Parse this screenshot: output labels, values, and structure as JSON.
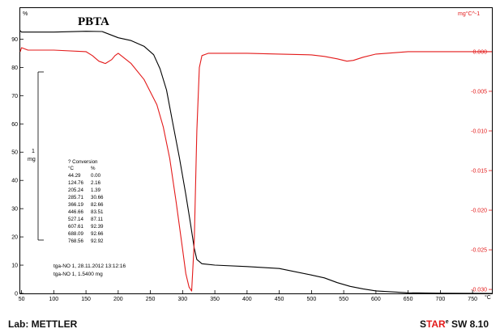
{
  "chart_data": {
    "type": "line",
    "title": "PBTA",
    "xlabel": "°C",
    "ylabel_left": "%",
    "ylabel_right": "mg°C^-1",
    "x_ticks": [
      50,
      100,
      150,
      200,
      250,
      300,
      350,
      400,
      450,
      500,
      550,
      600,
      650,
      700,
      750
    ],
    "xlim": [
      48,
      780
    ],
    "y_left_ticks": [
      0,
      10,
      20,
      30,
      40,
      50,
      60,
      70,
      80,
      90
    ],
    "y_left_lim": [
      0,
      101
    ],
    "y_right_ticks": [
      0.0,
      -0.005,
      -0.01,
      -0.015,
      -0.02,
      -0.025,
      -0.03
    ],
    "y_right_tick_labels": [
      "0.000",
      "-0.005",
      "-0.010",
      "-0.015",
      "-0.020",
      "-0.025",
      "-0.030"
    ],
    "y_right_lim": [
      -0.0305,
      0.0055
    ],
    "grid": false,
    "series": [
      {
        "axis": "left",
        "color": "#000000",
        "x": [
          48,
          50,
          70,
          100,
          150,
          175,
          200,
          220,
          240,
          255,
          265,
          275,
          285,
          295,
          305,
          312,
          318,
          322,
          330,
          350,
          400,
          450,
          500,
          520,
          540,
          560,
          580,
          600,
          630,
          650,
          700,
          780
        ],
        "y": [
          93,
          92.5,
          92.5,
          92.5,
          92.8,
          92.7,
          90.5,
          89.5,
          87.5,
          84.5,
          79.5,
          72,
          60,
          48,
          35,
          25,
          16,
          12,
          10.5,
          10,
          9.5,
          8.8,
          6.5,
          5.5,
          3.8,
          2.5,
          1.6,
          0.9,
          0.5,
          0.2,
          0.05,
          0
        ]
      },
      {
        "axis": "right",
        "color": "#e31a1a",
        "x": [
          48,
          50,
          60,
          70,
          100,
          150,
          160,
          170,
          180,
          190,
          195,
          200,
          220,
          240,
          260,
          270,
          280,
          290,
          300,
          305,
          310,
          314,
          318,
          322,
          326,
          330,
          340,
          360,
          400,
          450,
          500,
          520,
          540,
          555,
          565,
          580,
          600,
          650,
          700,
          780
        ],
        "y": [
          0.0,
          0.0005,
          0.0002,
          0.0002,
          0.0002,
          0.0,
          -0.0005,
          -0.0012,
          -0.0015,
          -0.001,
          -0.0005,
          -0.0002,
          -0.0015,
          -0.0035,
          -0.0067,
          -0.0095,
          -0.0135,
          -0.019,
          -0.025,
          -0.028,
          -0.0297,
          -0.0302,
          -0.024,
          -0.01,
          -0.002,
          -0.0005,
          -0.0002,
          -0.0002,
          -0.0002,
          -0.0003,
          -0.0004,
          -0.0006,
          -0.0009,
          -0.0012,
          -0.0011,
          -0.0007,
          -0.0003,
          0.0,
          0.0,
          0.0
        ]
      }
    ],
    "scale_bar": {
      "value": "1",
      "unit": "mg"
    },
    "conversion_table": {
      "title": "? Conversion",
      "headers": [
        "°C",
        "%"
      ],
      "rows": [
        [
          "44.29",
          "0.00"
        ],
        [
          "124.76",
          "2.16"
        ],
        [
          "205.24",
          "1.39"
        ],
        [
          "285.71",
          "30.66"
        ],
        [
          "366.19",
          "82.66"
        ],
        [
          "446.66",
          "83.51"
        ],
        [
          "527.14",
          "87.11"
        ],
        [
          "607.61",
          "92.39"
        ],
        [
          "688.09",
          "92.66"
        ],
        [
          "768.56",
          "92.92"
        ]
      ]
    },
    "sample_info": [
      "tga-NO 1, 28.11.2012 13:12:16",
      "tga-NO 1, 1.5400 mg"
    ]
  },
  "footer": {
    "lab": "Lab: METTLER",
    "star_s": "S",
    "star_tar": "TAR",
    "star_reg": "e",
    "star_sw": " SW 8.10"
  }
}
